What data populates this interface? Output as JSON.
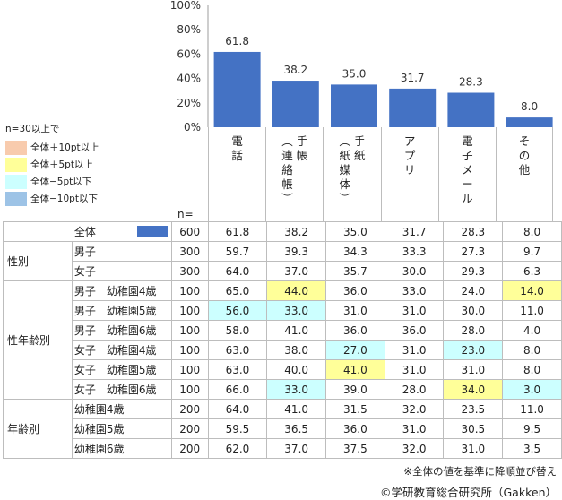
{
  "chart_data": {
    "type": "bar",
    "ylim": [
      0,
      100
    ],
    "yticks": [
      "0%",
      "20%",
      "40%",
      "60%",
      "80%",
      "100%"
    ],
    "categories": [
      "電話",
      "手帳（連絡帳）",
      "手紙（紙媒体）",
      "アプリ",
      "電子メール",
      "その他"
    ],
    "category_lines": [
      [
        "電",
        "話"
      ],
      [
        "手",
        "帳",
        "（連",
        "絡",
        "帳）"
      ],
      [
        "手",
        "紙",
        "（紙",
        "媒",
        "体）"
      ],
      [
        "ア",
        "プ",
        "リ"
      ],
      [
        "電",
        "子",
        "メ",
        "ー",
        "ル"
      ],
      [
        "そ",
        "の",
        "他"
      ]
    ],
    "values": [
      61.8,
      38.2,
      35.0,
      31.7,
      28.3,
      8.0
    ],
    "bar_color": "#4472c4"
  },
  "legend": {
    "title": "n=30以上で",
    "items": [
      {
        "label": "全体＋10pt以上",
        "color": "#f8cbad"
      },
      {
        "label": "全体＋5pt以上",
        "color": "#ffff99"
      },
      {
        "label": "全体−5pt以下",
        "color": "#ccffff"
      },
      {
        "label": "全体−10pt以下",
        "color": "#9dc3e6"
      }
    ]
  },
  "n_header": "n=",
  "table": [
    {
      "group": "",
      "label": "全体",
      "n": "600",
      "vals": [
        "61.8",
        "38.2",
        "35.0",
        "31.7",
        "28.3",
        "8.0"
      ],
      "hl": [
        "",
        "",
        "",
        "",
        "",
        ""
      ],
      "swatch": true
    },
    {
      "group": "性別",
      "label": "男子",
      "n": "300",
      "vals": [
        "59.7",
        "39.3",
        "34.3",
        "33.3",
        "27.3",
        "9.7"
      ],
      "hl": [
        "",
        "",
        "",
        "",
        "",
        ""
      ]
    },
    {
      "group": "",
      "label": "女子",
      "n": "300",
      "vals": [
        "64.0",
        "37.0",
        "35.7",
        "30.0",
        "29.3",
        "6.3"
      ],
      "hl": [
        "",
        "",
        "",
        "",
        "",
        ""
      ]
    },
    {
      "group": "性年齢別",
      "label": "男子　幼稚園4歳",
      "n": "100",
      "vals": [
        "65.0",
        "44.0",
        "36.0",
        "33.0",
        "24.0",
        "14.0"
      ],
      "hl": [
        "",
        "y",
        "",
        "",
        "",
        "y"
      ]
    },
    {
      "group": "",
      "label": "男子　幼稚園5歳",
      "n": "100",
      "vals": [
        "56.0",
        "33.0",
        "31.0",
        "31.0",
        "30.0",
        "11.0"
      ],
      "hl": [
        "c",
        "c",
        "",
        "",
        "",
        ""
      ]
    },
    {
      "group": "",
      "label": "男子　幼稚園6歳",
      "n": "100",
      "vals": [
        "58.0",
        "41.0",
        "36.0",
        "36.0",
        "28.0",
        "4.0"
      ],
      "hl": [
        "",
        "",
        "",
        "",
        "",
        ""
      ]
    },
    {
      "group": "",
      "label": "女子　幼稚園4歳",
      "n": "100",
      "vals": [
        "63.0",
        "38.0",
        "27.0",
        "31.0",
        "23.0",
        "8.0"
      ],
      "hl": [
        "",
        "",
        "c",
        "",
        "c",
        ""
      ]
    },
    {
      "group": "",
      "label": "女子　幼稚園5歳",
      "n": "100",
      "vals": [
        "63.0",
        "40.0",
        "41.0",
        "31.0",
        "31.0",
        "8.0"
      ],
      "hl": [
        "",
        "",
        "y",
        "",
        "",
        ""
      ]
    },
    {
      "group": "",
      "label": "女子　幼稚園6歳",
      "n": "100",
      "vals": [
        "66.0",
        "33.0",
        "39.0",
        "28.0",
        "34.0",
        "3.0"
      ],
      "hl": [
        "",
        "c",
        "",
        "",
        "y",
        "c"
      ]
    },
    {
      "group": "年齢別",
      "label": "幼稚園4歳",
      "n": "200",
      "vals": [
        "64.0",
        "41.0",
        "31.5",
        "32.0",
        "23.5",
        "11.0"
      ],
      "hl": [
        "",
        "",
        "",
        "",
        "",
        ""
      ]
    },
    {
      "group": "",
      "label": "幼稚園5歳",
      "n": "200",
      "vals": [
        "59.5",
        "36.5",
        "36.0",
        "31.0",
        "30.5",
        "9.5"
      ],
      "hl": [
        "",
        "",
        "",
        "",
        "",
        ""
      ]
    },
    {
      "group": "",
      "label": "幼稚園6歳",
      "n": "200",
      "vals": [
        "62.0",
        "37.0",
        "37.5",
        "32.0",
        "31.0",
        "3.5"
      ],
      "hl": [
        "",
        "",
        "",
        "",
        "",
        ""
      ]
    }
  ],
  "notes": {
    "sort_note": "※全体の値を基準に降順並び替え",
    "source": "©学研教育総合研究所（Gakken）"
  }
}
